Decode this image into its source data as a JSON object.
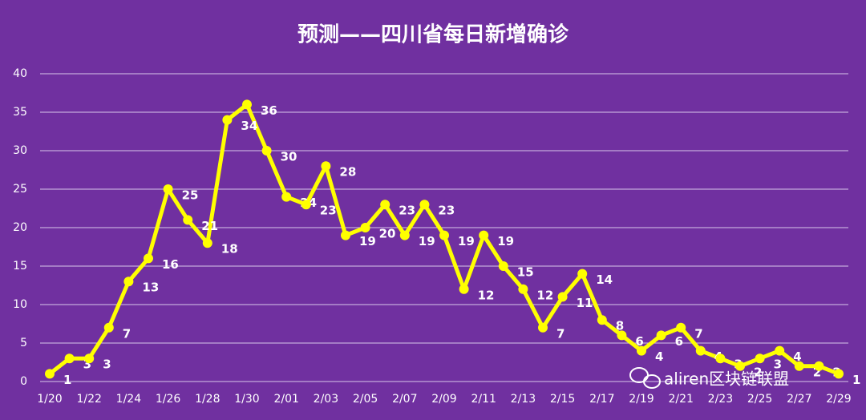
{
  "chart_data": {
    "type": "line",
    "title": "预测——四川省每日新增确诊",
    "categories": [
      "1/20",
      null,
      "1/22",
      null,
      "1/24",
      null,
      "1/26",
      null,
      "1/28",
      null,
      "1/30",
      null,
      "2/01",
      null,
      "2/03",
      null,
      "2/05",
      null,
      "2/07",
      null,
      "2/09",
      null,
      "2/11",
      null,
      "2/13",
      null,
      "2/15",
      null,
      "2/17",
      null,
      "2/19",
      null,
      "2/21",
      null,
      "2/23",
      null,
      "2/25",
      null,
      "2/27",
      null,
      "2/29"
    ],
    "series": [
      {
        "color": "#ffff00",
        "values": [
          1,
          3,
          3,
          7,
          13,
          16,
          25,
          21,
          18,
          34,
          36,
          30,
          24,
          23,
          28,
          19,
          20,
          23,
          19,
          23,
          19,
          12,
          19,
          15,
          12,
          7,
          11,
          14,
          8,
          6,
          4,
          6,
          7,
          4,
          3,
          2,
          3,
          4,
          2,
          2,
          1
        ]
      }
    ],
    "ylim": [
      0,
      40
    ],
    "yticks": [
      0,
      5,
      10,
      15,
      20,
      25,
      30,
      35,
      40
    ],
    "grid": true,
    "watermark": "aliren区块链联盟"
  }
}
